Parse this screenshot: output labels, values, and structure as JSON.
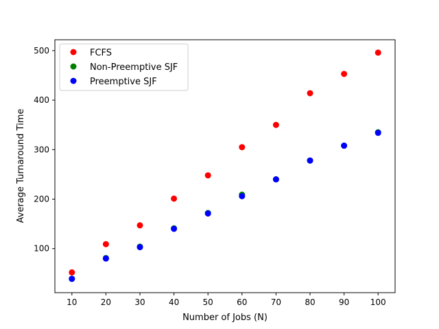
{
  "chart_data": {
    "type": "scatter",
    "title": "",
    "xlabel": "Number of Jobs (N)",
    "ylabel": "Average Turnaround Time",
    "xlim": [
      5,
      105
    ],
    "ylim": [
      11,
      522
    ],
    "xticks": [
      10,
      20,
      30,
      40,
      50,
      60,
      70,
      80,
      90,
      100
    ],
    "yticks": [
      100,
      200,
      300,
      400,
      500
    ],
    "grid": false,
    "legend_position": "top-left",
    "series": [
      {
        "name": "FCFS",
        "color": "#ff0000",
        "x": [
          10,
          20,
          30,
          40,
          50,
          60,
          70,
          80,
          90,
          100
        ],
        "y": [
          52,
          109,
          147,
          201,
          248,
          305,
          350,
          414,
          453,
          496
        ]
      },
      {
        "name": "Non-Preemptive SJF",
        "color": "#008000",
        "x": [
          10,
          20,
          30,
          40,
          50,
          60,
          70,
          80,
          90,
          100
        ],
        "y": [
          39,
          81,
          104,
          141,
          172,
          209,
          240,
          278,
          308,
          335
        ]
      },
      {
        "name": "Preemptive SJF",
        "color": "#0000ff",
        "x": [
          10,
          20,
          30,
          40,
          50,
          60,
          70,
          80,
          90,
          100
        ],
        "y": [
          39,
          80,
          103,
          140,
          171,
          206,
          240,
          278,
          308,
          334
        ]
      }
    ]
  }
}
